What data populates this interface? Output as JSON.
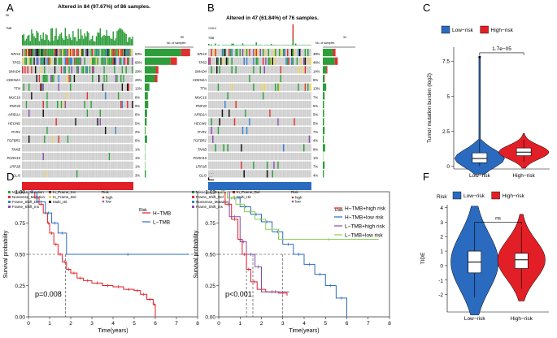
{
  "panel_letters": {
    "a": "A",
    "b": "B",
    "c": "C",
    "d": "D",
    "e": "E",
    "f": "F"
  },
  "colors": {
    "missense": "#2e9e3b",
    "nonsense": "#e03030",
    "fs_del": "#3a7fd0",
    "fs_ins": "#8a4fb0",
    "if_ins": "#b5302e",
    "if_del": "#f0d24a",
    "multi": "#111111",
    "grey": "#cfcfcf",
    "high": "#e21f26",
    "low": "#2a6bbf",
    "teal": "#2f9fa0",
    "green": "#8ccf5a",
    "purple": "#7f4fa0"
  },
  "oncoprint_a": {
    "title": "Altered in 84 (97.67%) of 86 samples.",
    "tmb_label": "TMB",
    "tmb_max": "55",
    "genes": [
      "KRAS",
      "TP53",
      "SMAD4",
      "CDKN2A",
      "TTN",
      "MUC16",
      "RNF43",
      "ARID1A",
      "HECW2",
      "RYR1",
      "TGFBR2",
      "TNXB",
      "PCDH15",
      "LRP1B",
      "GLI3"
    ],
    "percents": [
      "93%",
      "66%",
      "28%",
      "26%",
      "12%",
      "8%",
      "9%",
      "6%",
      "5%",
      "2%",
      "6%",
      "1%",
      "1%",
      "1%",
      "3%"
    ],
    "side_max": "89",
    "side_label": "No. of samples",
    "risk_label": "Risk",
    "risk": "high"
  },
  "oncoprint_b": {
    "title": "Altered in 47 (61.84%) of 76 samples.",
    "tmb_label": "TMB",
    "tmb_max": "12414",
    "genes": [
      "KRAS",
      "TP53",
      "SMAD4",
      "CDKN2A",
      "TTN",
      "MUC16",
      "RNF43",
      "ARID1A",
      "HECW2",
      "RYR1",
      "TGFBR2",
      "TNXB",
      "PCDH15",
      "LRP1B",
      "GLI3"
    ],
    "percents": [
      "39%",
      "46%",
      "14%",
      "6%",
      "13%",
      "7%",
      "5%",
      "5%",
      "5%",
      "7%",
      "4%",
      "9%",
      "1%",
      "7%",
      "4%"
    ],
    "side_max": "34",
    "side_label": "No. of samples",
    "risk_label": "Risk",
    "risk": "low"
  },
  "onco_legend": {
    "items": [
      "Missense_Mutation",
      "Nonsense_Mutation",
      "Frame_Shift_Del",
      "Frame_Shift_Ins",
      "In_Frame_Ins",
      "In_Frame_Del",
      "Multi_Hit"
    ],
    "items_b": [
      "Missense_Mutation",
      "Frame_Shift_Del",
      "Nonsense_Mutation",
      "Frame_Shift_Ins",
      "In_Frame_Del",
      "Multi_Hit"
    ],
    "risk_title": "Risk",
    "risk_levels": [
      "high",
      "low"
    ]
  },
  "chart_data": [
    {
      "panel": "C",
      "type": "violin",
      "title": "",
      "legend": {
        "title": "",
        "entries": [
          "Low−risk",
          "High−risk"
        ]
      },
      "categories": [
        "Low−risk",
        "High−risk"
      ],
      "ylabel": "Tumor mutation burden (log2)",
      "ylim": [
        -0.2,
        8.5
      ],
      "yticks": [
        0.0,
        2.5,
        5.0,
        7.5
      ],
      "boxes": [
        {
          "name": "Low−risk",
          "q1": 0.25,
          "median": 0.55,
          "q3": 0.95,
          "whisker_low": 0.0,
          "whisker_high": 1.9,
          "max": 7.8
        },
        {
          "name": "High−risk",
          "q1": 0.75,
          "median": 1.0,
          "q3": 1.3,
          "whisker_low": 0.3,
          "whisker_high": 1.9
        }
      ],
      "annotation": "1.7e−05"
    },
    {
      "panel": "D",
      "type": "line",
      "title": "",
      "xlabel": "Time(years)",
      "ylabel": "Survival probability",
      "xlim": [
        0,
        8
      ],
      "ylim": [
        0,
        1
      ],
      "xticks": [
        0,
        1,
        2,
        3,
        4,
        5,
        6,
        7,
        8
      ],
      "yticks": [
        0.0,
        0.25,
        0.5,
        0.75,
        1.0
      ],
      "series": [
        {
          "name": "H−TMB",
          "x": [
            0,
            0.3,
            0.5,
            0.7,
            0.9,
            1.0,
            1.2,
            1.4,
            1.6,
            1.8,
            2.0,
            2.3,
            2.6,
            3.0,
            3.5,
            4.0,
            4.5,
            5.0,
            5.3,
            5.6,
            5.9,
            6.0
          ],
          "y": [
            1.0,
            0.95,
            0.9,
            0.83,
            0.75,
            0.67,
            0.58,
            0.5,
            0.44,
            0.38,
            0.35,
            0.31,
            0.29,
            0.27,
            0.25,
            0.24,
            0.22,
            0.21,
            0.18,
            0.14,
            0.1,
            0.0
          ]
        },
        {
          "name": "L−TMB",
          "x": [
            0,
            0.4,
            0.8,
            1.1,
            1.4,
            1.8,
            7.6
          ],
          "y": [
            1.0,
            0.92,
            0.83,
            0.75,
            0.67,
            0.5,
            0.5
          ]
        }
      ],
      "annotation": "p=0.008",
      "median_lines": [
        1.75
      ]
    },
    {
      "panel": "E",
      "type": "line",
      "title": "",
      "xlabel": "Time(years)",
      "ylabel": "Survival probability",
      "xlim": [
        0,
        8
      ],
      "ylim": [
        0,
        1
      ],
      "xticks": [
        0,
        1,
        2,
        3,
        4,
        5,
        6,
        7,
        8
      ],
      "yticks": [
        0.0,
        0.25,
        0.5,
        0.75,
        1.0
      ],
      "series": [
        {
          "name": "H−TMB+high risk",
          "x": [
            0,
            0.3,
            0.6,
            0.9,
            1.1,
            1.3,
            1.5,
            1.8,
            2.2,
            2.8,
            3.2
          ],
          "y": [
            1.0,
            0.9,
            0.78,
            0.62,
            0.5,
            0.38,
            0.28,
            0.22,
            0.2,
            0.19,
            0.17
          ]
        },
        {
          "name": "H−TMB+low risk",
          "x": [
            0,
            0.5,
            1.0,
            1.5,
            2.0,
            2.5,
            3.0,
            3.5,
            4.0,
            4.5,
            5.0,
            5.5,
            6.0
          ],
          "y": [
            1.0,
            0.95,
            0.88,
            0.82,
            0.76,
            0.68,
            0.58,
            0.5,
            0.42,
            0.34,
            0.25,
            0.15,
            0.0
          ]
        },
        {
          "name": "L−TMB+high risk",
          "x": [
            0,
            0.5,
            1.0,
            1.3,
            1.7,
            2.0,
            3.3
          ],
          "y": [
            1.0,
            0.8,
            0.6,
            0.5,
            0.4,
            0.2,
            0.2
          ]
        },
        {
          "name": "L−TMB+low risk",
          "x": [
            0,
            0.4,
            0.8,
            1.2,
            1.7,
            2.2,
            2.8,
            7.5
          ],
          "y": [
            1.0,
            0.95,
            0.9,
            0.84,
            0.78,
            0.7,
            0.62,
            0.62
          ]
        }
      ],
      "annotation": "p<0.001",
      "median_lines": [
        1.3,
        1.6,
        3.0
      ]
    },
    {
      "panel": "F",
      "type": "violin",
      "title": "",
      "legend": {
        "title": "Risk",
        "entries": [
          "Low−risk",
          "High−risk"
        ]
      },
      "categories": [
        "Low−risk",
        "High−risk"
      ],
      "ylabel": "TIDE",
      "ylim": [
        -3.2,
        4.2
      ],
      "yticks": [
        -2,
        -1,
        0,
        1,
        2,
        3,
        4
      ],
      "boxes": [
        {
          "name": "Low−risk",
          "q1": -0.5,
          "median": 0.25,
          "q3": 1.0,
          "whisker_low": -2.2,
          "whisker_high": 2.9
        },
        {
          "name": "High−risk",
          "q1": -0.2,
          "median": 0.4,
          "q3": 0.85,
          "whisker_low": -1.6,
          "whisker_high": 2.7
        }
      ],
      "annotation": "ns"
    }
  ]
}
